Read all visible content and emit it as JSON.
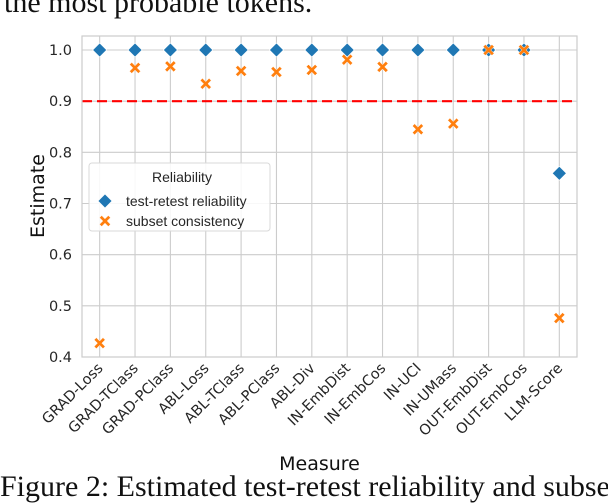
{
  "caption_top": "the most probable tokens.",
  "caption_bottom": "Figure 2:  Estimated test-retest reliability and subset",
  "chart_data": {
    "type": "scatter",
    "title": "",
    "xlabel": "Measure",
    "ylabel": "Estimate",
    "categories": [
      "GRAD-Loss",
      "GRAD-TClass",
      "GRAD-PClass",
      "ABL-Loss",
      "ABL-TClass",
      "ABL-PClass",
      "ABL-Div",
      "IN-EmbDist",
      "IN-EmbCos",
      "IN-UCI",
      "IN-UMass",
      "OUT-EmbDist",
      "OUT-EmbCos",
      "LLM-Score"
    ],
    "ylim": [
      0.4,
      1.03
    ],
    "yticks": [
      0.4,
      0.5,
      0.6,
      0.7,
      0.8,
      0.9,
      1.0
    ],
    "ytick_labels": [
      "0.4",
      "0.5",
      "0.6",
      "0.7",
      "0.8",
      "0.9",
      "1.0"
    ],
    "grid": true,
    "series": [
      {
        "name": "test-retest reliability",
        "marker": "diamond",
        "color": "#1f77b4",
        "values": [
          1.0,
          1.0,
          1.0,
          1.0,
          1.0,
          1.0,
          1.0,
          1.0,
          1.0,
          1.0,
          1.0,
          1.0,
          1.0,
          0.759
        ]
      },
      {
        "name": "subset consistency",
        "marker": "x",
        "color": "#ff7f0e",
        "values": [
          0.427,
          0.965,
          0.968,
          0.934,
          0.959,
          0.957,
          0.961,
          0.981,
          0.967,
          0.845,
          0.856,
          1.0,
          1.0,
          0.476
        ]
      }
    ],
    "reference_line": {
      "y": 0.9,
      "style": "dashed",
      "color": "#ff0000"
    },
    "legend": {
      "title": "Reliability",
      "placement": "center-left",
      "entries": [
        "test-retest reliability",
        "subset consistency"
      ]
    }
  }
}
